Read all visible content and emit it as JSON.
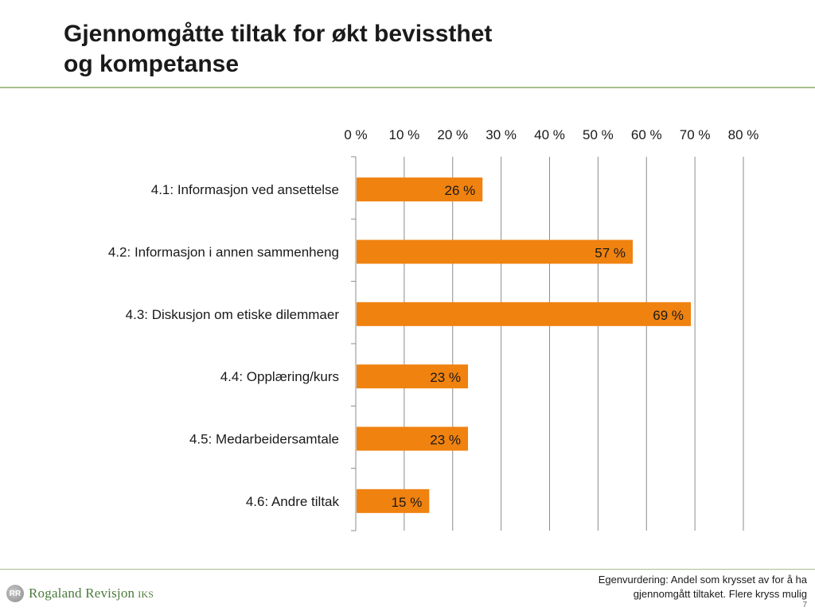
{
  "slide": {
    "title_lines": [
      "Gjennomgåtte tiltak for økt bevissthet",
      "og kompetanse"
    ],
    "footnote_lines": [
      "Egenvurdering: Andel som krysset av for å ha",
      "gjennomgått tiltaket. Flere kryss mulig"
    ],
    "page_number": "7",
    "logo": {
      "text": "Rogaland Revisjon",
      "suffix": "IKS",
      "mark": "RR"
    },
    "accent_color": "#a8c08a"
  },
  "chart_data": {
    "type": "bar",
    "orientation": "horizontal",
    "categories": [
      "4.1: Informasjon ved ansettelse",
      "4.2: Informasjon i annen sammenheng",
      "4.3: Diskusjon om etiske dilemmaer",
      "4.4: Opplæring/kurs",
      "4.5: Medarbeidersamtale",
      "4.6: Andre tiltak"
    ],
    "values": [
      26,
      57,
      69,
      23,
      23,
      15
    ],
    "value_labels": [
      "26 %",
      "57 %",
      "69 %",
      "23 %",
      "23 %",
      "15 %"
    ],
    "x_ticks": [
      0,
      10,
      20,
      30,
      40,
      50,
      60,
      70,
      80
    ],
    "x_tick_labels": [
      "0 %",
      "10 %",
      "20 %",
      "30 %",
      "40 %",
      "50 %",
      "60 %",
      "70 %",
      "80 %"
    ],
    "xlim": [
      0,
      80
    ],
    "x_axis_position": "top",
    "grid": "vertical",
    "bar_color": "#f0820f",
    "gridline_color": "#8c8c8c"
  }
}
